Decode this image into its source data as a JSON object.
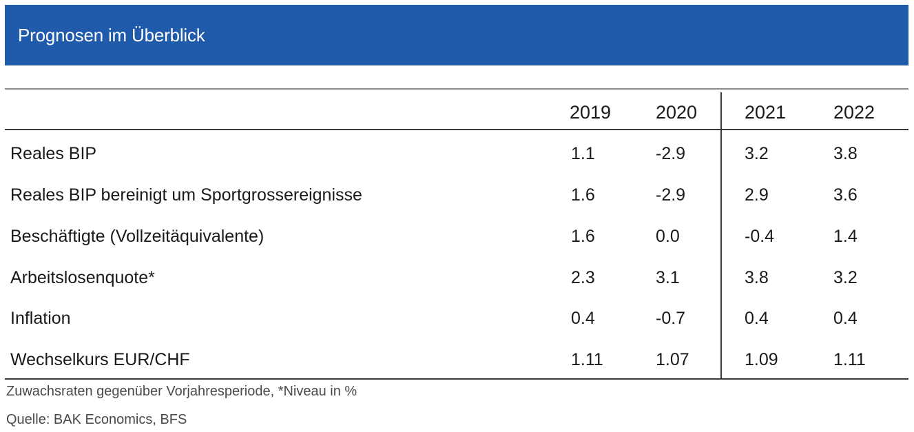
{
  "header": {
    "title": "Prognosen im Überblick"
  },
  "table": {
    "years": [
      "2019",
      "2020",
      "2021",
      "2022"
    ],
    "rows": [
      {
        "label": "Reales BIP",
        "values": [
          "1.1",
          "-2.9",
          "3.2",
          "3.8"
        ]
      },
      {
        "label": "Reales BIP bereinigt um Sportgrossereignisse",
        "values": [
          "1.6",
          "-2.9",
          "2.9",
          "3.6"
        ]
      },
      {
        "label": "Beschäftigte (Vollzeitäquivalente)",
        "values": [
          "1.6",
          "0.0",
          "-0.4",
          "1.4"
        ]
      },
      {
        "label": "Arbeitslosenquote*",
        "values": [
          "2.3",
          "3.1",
          "3.8",
          "3.2"
        ]
      },
      {
        "label": "Inflation",
        "values": [
          "0.4",
          "-0.7",
          "0.4",
          "0.4"
        ]
      },
      {
        "label": "Wechselkurs EUR/CHF",
        "values": [
          "1.11",
          "1.07",
          "1.09",
          "1.11"
        ]
      }
    ]
  },
  "footer": {
    "note": "Zuwachsraten gegenüber Vorjahresperiode, *Niveau in %",
    "source": "Quelle: BAK Economics, BFS"
  },
  "colors": {
    "header_background": "#1f5aab",
    "header_text": "#ffffff",
    "table_rule": "#3a3a3a"
  }
}
